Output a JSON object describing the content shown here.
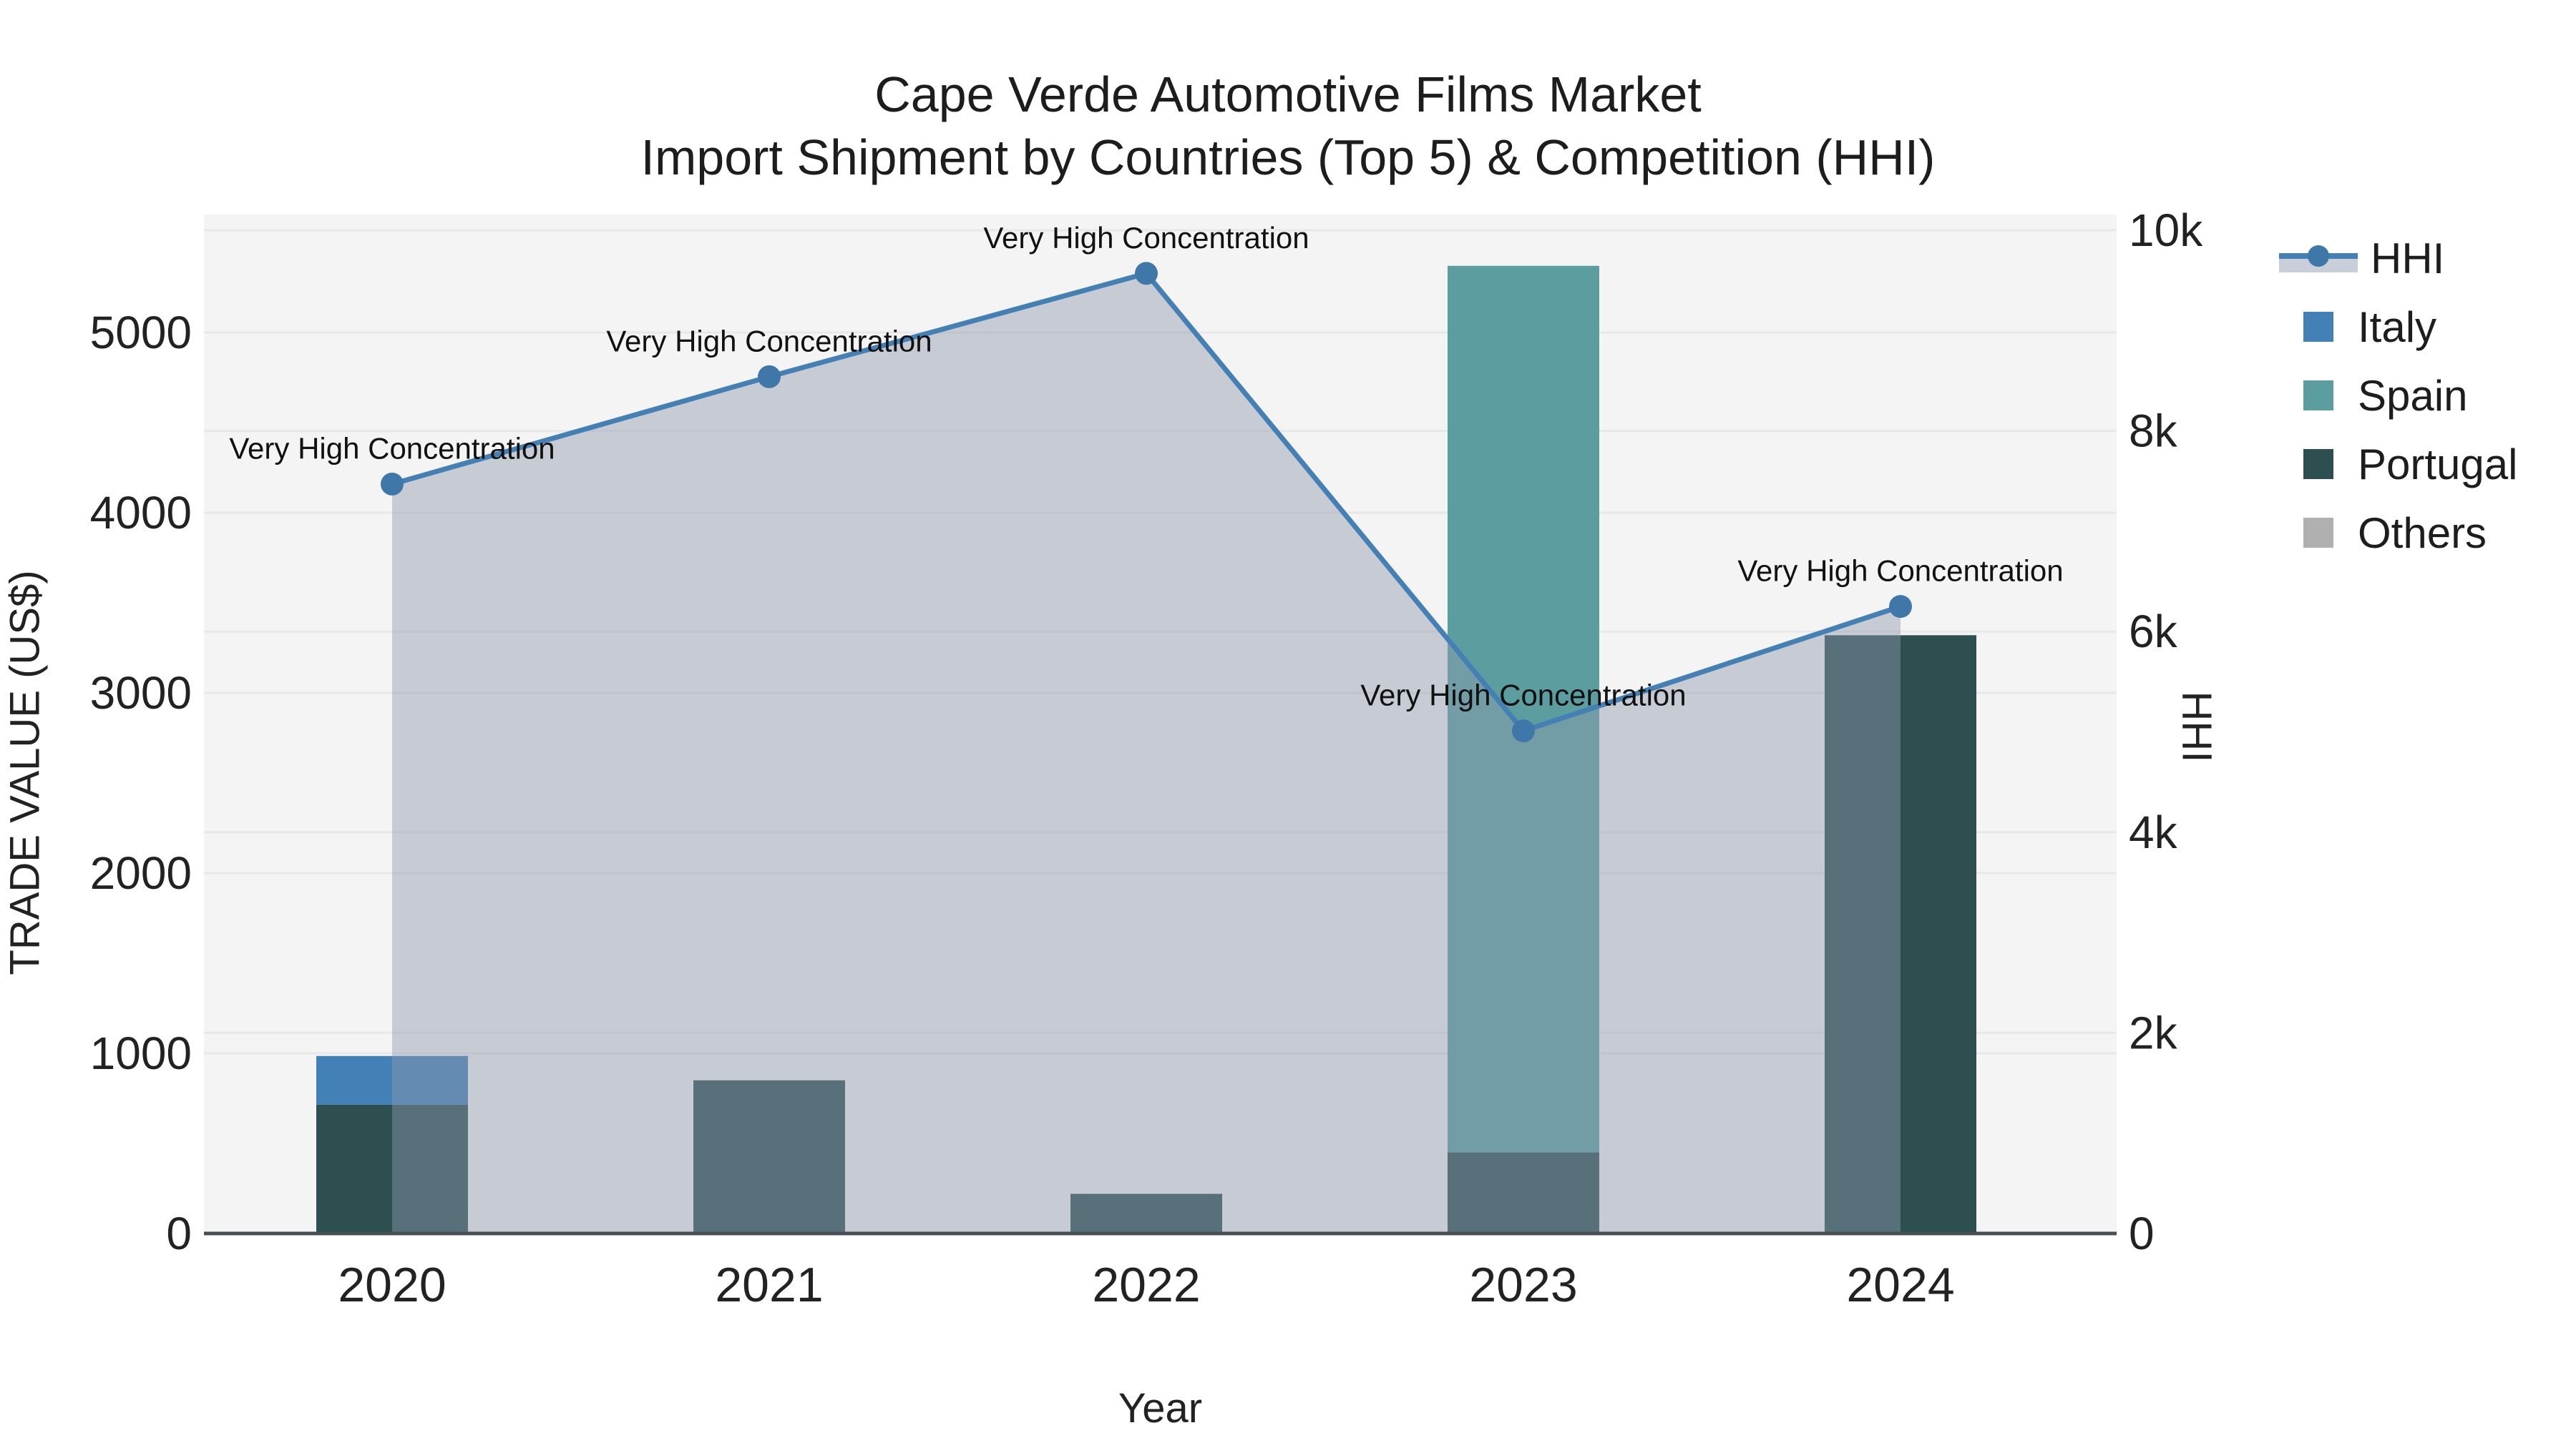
{
  "title": {
    "line1": "Cape Verde Automotive Films Market",
    "line2": "Import Shipment by Countries (Top 5) & Competition (HHI)"
  },
  "axes": {
    "y_left_title": "TRADE VALUE (US$)",
    "y_right_title": "HHI",
    "x_title": "Year"
  },
  "legend": {
    "items": [
      {
        "label": "HHI",
        "type": "line",
        "color": "#4480b4"
      },
      {
        "label": "Italy",
        "type": "bar",
        "color": "#4380b6"
      },
      {
        "label": "Spain",
        "type": "bar",
        "color": "#5c9ea0"
      },
      {
        "label": "Portugal",
        "type": "bar",
        "color": "#2d4f50"
      },
      {
        "label": "Others",
        "type": "bar",
        "color": "#b0b0b0"
      }
    ]
  },
  "chart_data": {
    "type": "bar+line",
    "title": "Cape Verde Automotive Films Market Import Shipment by Countries (Top 5) & Competition (HHI)",
    "categories": [
      "2020",
      "2021",
      "2022",
      "2023",
      "2024"
    ],
    "xlabel": "Year",
    "ylabel_left": "TRADE VALUE (US$)",
    "ylabel_right": "HHI",
    "ylim_left": [
      0,
      5650
    ],
    "ylim_right": [
      0,
      10000
    ],
    "grid": true,
    "legend_position": "right",
    "bar_stack_order_bottom_to_top": [
      "Portugal",
      "Spain",
      "Italy",
      "Others"
    ],
    "series": [
      {
        "name": "Italy",
        "type": "bar",
        "values": [
          270,
          0,
          0,
          0,
          0
        ],
        "color": "#4380b6"
      },
      {
        "name": "Spain",
        "type": "bar",
        "values": [
          0,
          0,
          0,
          4920,
          0
        ],
        "color": "#5c9ea0"
      },
      {
        "name": "Portugal",
        "type": "bar",
        "values": [
          715,
          850,
          220,
          450,
          3320
        ],
        "color": "#2d4f50"
      },
      {
        "name": "Others",
        "type": "bar",
        "values": [
          0,
          0,
          0,
          0,
          0
        ],
        "color": "#b0b0b0"
      }
    ],
    "hhi": {
      "name": "HHI",
      "type": "line+area",
      "axis": "right",
      "values": [
        7470,
        8540,
        9570,
        5010,
        6250
      ],
      "line_color": "#4480b4",
      "marker_color": "#3f77a9",
      "area_fill": "rgba(141,152,172,0.45)",
      "annotations": [
        "Very High Concentration",
        "Very High Concentration",
        "Very High Concentration",
        "Very High Concentration",
        "Very High Concentration"
      ]
    },
    "y_left_ticks": [
      {
        "label": "0",
        "value": 0
      },
      {
        "label": "1000",
        "value": 1000
      },
      {
        "label": "2000",
        "value": 2000
      },
      {
        "label": "3000",
        "value": 3000
      },
      {
        "label": "4000",
        "value": 4000
      },
      {
        "label": "5000",
        "value": 5000
      }
    ],
    "y_right_ticks": [
      {
        "label": "0",
        "value": 0
      },
      {
        "label": "2k",
        "value": 2000
      },
      {
        "label": "4k",
        "value": 4000
      },
      {
        "label": "6k",
        "value": 6000
      },
      {
        "label": "8k",
        "value": 8000
      },
      {
        "label": "10k",
        "value": 10000
      }
    ],
    "colors": {
      "plot_bg": "#f4f4f5",
      "gridline": "#e7e8ea",
      "baseline": "#474f54",
      "annotation_text": "#111111",
      "tick_text": "#222222"
    }
  }
}
